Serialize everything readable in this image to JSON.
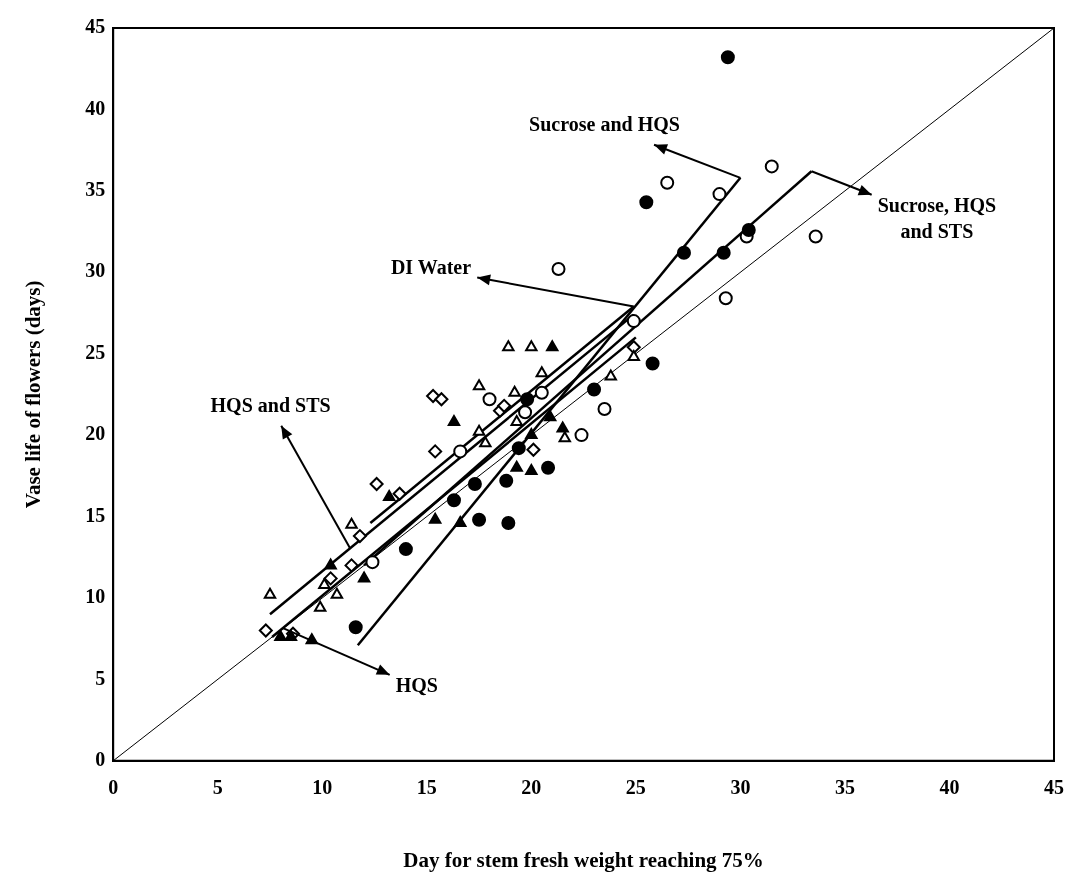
{
  "chart_data": {
    "type": "scatter",
    "xlabel": "Day for stem fresh weight reaching 75%",
    "ylabel": "Vase life of flowers (days)",
    "xlim": [
      0,
      45
    ],
    "ylim": [
      0,
      45
    ],
    "xticks": [
      0,
      5,
      10,
      15,
      20,
      25,
      30,
      35,
      40,
      45
    ],
    "yticks": [
      0,
      5,
      10,
      15,
      20,
      25,
      30,
      35,
      40,
      45
    ],
    "grid": false,
    "legend": false,
    "series": [
      {
        "type": "scatter",
        "marker": "circle",
        "color": "#000000",
        "x": [
          29.4,
          25.5,
          27.3,
          30.4,
          29.2,
          25.8,
          23,
          19.8,
          20.8,
          18.8,
          17.3,
          16.3,
          17.5,
          18.9,
          14,
          11.6,
          19.4
        ],
        "values": [
          43.2,
          34.3,
          31.2,
          32.6,
          31.2,
          24.4,
          22.8,
          22.2,
          18,
          17.2,
          17,
          16,
          14.8,
          14.6,
          13,
          8.2,
          19.2
        ]
      },
      {
        "type": "scatter",
        "marker": "circle",
        "color": "#ffffff",
        "x": [
          33.6,
          31.5,
          26.5,
          29,
          30.3,
          29.3,
          21.3,
          24.9,
          22.4,
          23.5,
          20.5,
          19.7,
          18,
          16.6,
          12.4
        ],
        "values": [
          32.2,
          36.5,
          35.5,
          34.8,
          32.2,
          28.4,
          30.2,
          27,
          20,
          21.6,
          22.6,
          21.4,
          22.2,
          19,
          12.2
        ]
      },
      {
        "type": "scatter",
        "marker": "triangle",
        "color": "#000000",
        "x": [
          21,
          16.3,
          13.2,
          20.9,
          19.3,
          20,
          21.5,
          15.4,
          16.6,
          12,
          10.4,
          8,
          8.5,
          9.5,
          20
        ],
        "values": [
          25.4,
          20.8,
          16.2,
          21.1,
          18,
          17.8,
          20.4,
          14.8,
          14.6,
          11.2,
          12,
          7.6,
          7.6,
          7.4,
          20
        ]
      },
      {
        "type": "scatter",
        "marker": "triangle",
        "color": "#ffffff",
        "x": [
          18.9,
          20,
          17.5,
          19.2,
          20.5,
          19.3,
          17.5,
          17.8,
          23.8,
          24.9,
          21.6,
          11.4,
          7.5,
          10.1,
          10.7,
          9.9
        ],
        "values": [
          25.4,
          25.4,
          23,
          22.6,
          23.8,
          20.8,
          20.2,
          19.5,
          23.6,
          24.8,
          19.8,
          14.5,
          10.2,
          10.8,
          10.2,
          9.4
        ]
      },
      {
        "type": "scatter",
        "marker": "diamond",
        "color": "#ffffff",
        "x": [
          15.3,
          15.7,
          12.6,
          13.7,
          15.4,
          11.8,
          11.4,
          10.4,
          7.3,
          8.6,
          18.5,
          18.7,
          20.1,
          24.9
        ],
        "values": [
          22.4,
          22.2,
          17,
          16.4,
          19,
          13.8,
          12,
          11.2,
          8,
          7.8,
          21.5,
          21.8,
          19.1,
          25.4
        ]
      },
      {
        "type": "line",
        "color": "#000000",
        "x": [
          11.7,
          30
        ],
        "values": [
          7.1,
          35.8
        ]
      },
      {
        "type": "line",
        "color": "#000000",
        "x": [
          12,
          33.4
        ],
        "values": [
          12,
          36.2
        ]
      },
      {
        "type": "line",
        "color": "#000000",
        "x": [
          12.3,
          24.9
        ],
        "values": [
          14.6,
          27.9
        ]
      },
      {
        "type": "line",
        "color": "#000000",
        "x": [
          7.5,
          24.9
        ],
        "values": [
          9,
          27.4
        ]
      },
      {
        "type": "line",
        "color": "#000000",
        "x": [
          7.6,
          25
        ],
        "values": [
          7.6,
          26
        ]
      },
      {
        "type": "line",
        "color": "#000000",
        "x": [
          0,
          45
        ],
        "values": [
          0,
          45
        ]
      }
    ],
    "annotations": [
      "Sucrose and HQS",
      "Sucrose, HQS and STS",
      "DI Water",
      "HQS and STS",
      "HQS"
    ]
  }
}
